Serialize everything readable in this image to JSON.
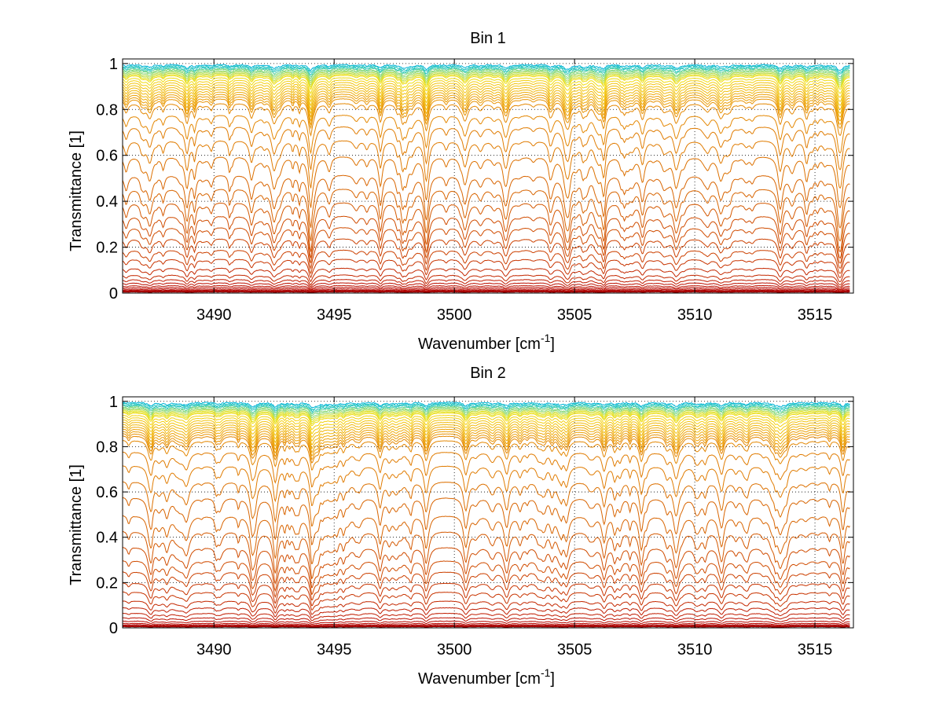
{
  "chart_data": [
    {
      "type": "line",
      "title": "Bin 1",
      "xlabel": "Wavenumber [cm",
      "xlabel_sup": "-1",
      "xlabel_end": "]",
      "ylabel": "Transmittance [1]",
      "xlim": [
        3486.2,
        3516.6
      ],
      "ylim": [
        0,
        1.02
      ],
      "xticks": [
        3490,
        3495,
        3500,
        3505,
        3510,
        3515
      ],
      "xtick_labels": [
        "3490",
        "3495",
        "3500",
        "3505",
        "3510",
        "3515"
      ],
      "yticks": [
        0,
        0.2,
        0.4,
        0.6,
        0.8,
        1
      ],
      "ytick_labels": [
        "0",
        "0.2",
        "0.4",
        "0.6",
        "0.8",
        "1"
      ],
      "grid": true,
      "curve_baseline_transmittance": [
        0.995,
        0.99,
        0.985,
        0.98,
        0.975,
        0.97,
        0.965,
        0.96,
        0.955,
        0.95,
        0.94,
        0.93,
        0.92,
        0.91,
        0.9,
        0.89,
        0.88,
        0.87,
        0.86,
        0.85,
        0.83,
        0.78,
        0.73,
        0.67,
        0.6,
        0.52,
        0.46,
        0.4,
        0.34,
        0.29,
        0.24,
        0.19,
        0.15,
        0.11,
        0.08,
        0.06,
        0.045,
        0.033,
        0.025,
        0.018,
        0.013,
        0.01,
        0.007,
        0.005
      ],
      "line_colors": [
        "#00b4d8",
        "#22c4c0",
        "#55d0a0",
        "#88d878",
        "#b8dc48",
        "#e0e020",
        "#f0dc10",
        "#f4d010",
        "#f2c410",
        "#f0b80c",
        "#eeac0a",
        "#eca008",
        "#e89406",
        "#e48804",
        "#e07c02",
        "#dc7000",
        "#d86400",
        "#d45800",
        "#d04c00",
        "#cc4000",
        "#c83400",
        "#c42800",
        "#c01c00",
        "#bc1000",
        "#b80800",
        "#b00000",
        "#a80000",
        "#a00000"
      ]
    },
    {
      "type": "line",
      "title": "Bin 2",
      "xlabel": "Wavenumber [cm",
      "xlabel_sup": "-1",
      "xlabel_end": "]",
      "ylabel": "Transmittance [1]",
      "xlim": [
        3486.2,
        3516.6
      ],
      "ylim": [
        0,
        1.02
      ],
      "xticks": [
        3490,
        3495,
        3500,
        3505,
        3510,
        3515
      ],
      "xtick_labels": [
        "3490",
        "3495",
        "3500",
        "3505",
        "3510",
        "3515"
      ],
      "yticks": [
        0,
        0.2,
        0.4,
        0.6,
        0.8,
        1
      ],
      "ytick_labels": [
        "0",
        "0.2",
        "0.4",
        "0.6",
        "0.8",
        "1"
      ],
      "grid": true,
      "curve_baseline_transmittance": [
        0.995,
        0.99,
        0.985,
        0.98,
        0.975,
        0.97,
        0.965,
        0.96,
        0.955,
        0.95,
        0.94,
        0.93,
        0.92,
        0.91,
        0.9,
        0.89,
        0.88,
        0.87,
        0.86,
        0.85,
        0.83,
        0.78,
        0.72,
        0.65,
        0.58,
        0.5,
        0.43,
        0.36,
        0.3,
        0.25,
        0.2,
        0.16,
        0.12,
        0.09,
        0.065,
        0.045,
        0.03,
        0.02,
        0.014,
        0.01,
        0.007,
        0.005
      ],
      "line_colors": [
        "#00b4d8",
        "#22c4c0",
        "#55d0a0",
        "#88d878",
        "#b8dc48",
        "#e0e020",
        "#f0dc10",
        "#f4d010",
        "#f2c410",
        "#f0b80c",
        "#eeac0a",
        "#eca008",
        "#e89406",
        "#e48804",
        "#e07c02",
        "#dc7000",
        "#d86400",
        "#d45800",
        "#d04c00",
        "#cc4000",
        "#c83400",
        "#c42800",
        "#c01c00",
        "#bc1000",
        "#b80800",
        "#b00000",
        "#a80000",
        "#a00000"
      ]
    }
  ]
}
